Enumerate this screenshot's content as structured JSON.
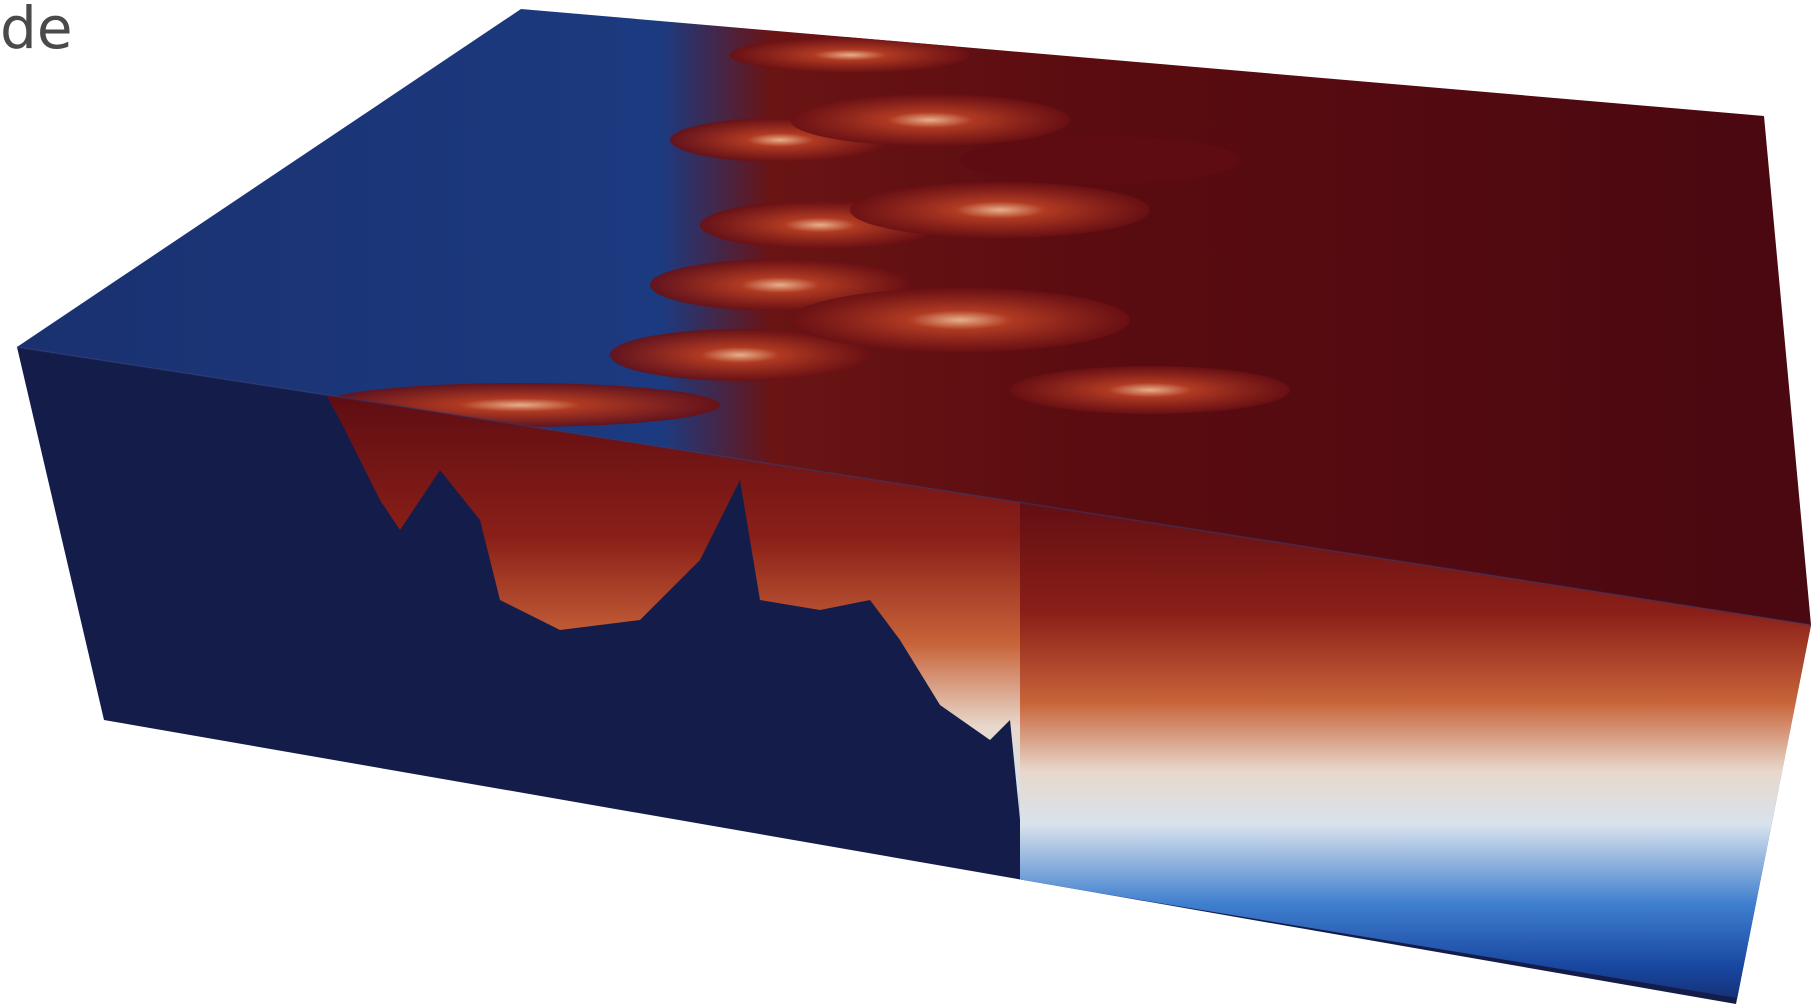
{
  "caption": "de"
}
